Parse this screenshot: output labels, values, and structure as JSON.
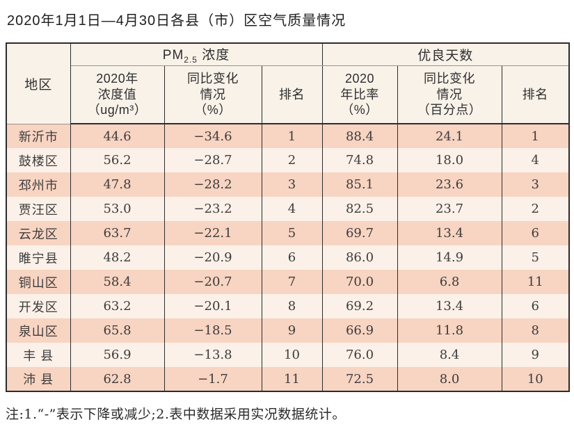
{
  "page": {
    "title": "2020年1月1日—4月30日各县（市）区空气质量情况",
    "note": "注:1.“-”表示下降或减少;2.表中数据采用实况数据统计。"
  },
  "colors": {
    "row_pink": "#f8d4c2",
    "row_light": "#fbf1e9",
    "header_bg": "#f8f2e9",
    "border_dark": "#2b2b2b"
  },
  "table": {
    "headers": {
      "region": "地区",
      "pm_group": {
        "base": "PM",
        "sub": "2.5",
        "rest": " 浓度"
      },
      "good_group": "优良天数",
      "pm_value": {
        "lines": [
          "2020年",
          "浓度值",
          "（ug/m³）"
        ]
      },
      "pm_change": {
        "lines": [
          "同比变化",
          "情况",
          "（%）"
        ]
      },
      "pm_rank": "排名",
      "good_rate": {
        "lines": [
          "2020",
          "年比率",
          "（%）"
        ]
      },
      "good_change": {
        "lines": [
          "同比变化",
          "情况",
          "（百分点）"
        ]
      },
      "good_rank": "排名"
    },
    "rows": [
      {
        "region": "新沂市",
        "pm_value": "44.6",
        "pm_change": "−34.6",
        "pm_rank": "1",
        "good_rate": "88.4",
        "good_change": "24.1",
        "good_rank": "1"
      },
      {
        "region": "鼓楼区",
        "pm_value": "56.2",
        "pm_change": "−28.7",
        "pm_rank": "2",
        "good_rate": "74.8",
        "good_change": "18.0",
        "good_rank": "4"
      },
      {
        "region": "邳州市",
        "pm_value": "47.8",
        "pm_change": "−28.2",
        "pm_rank": "3",
        "good_rate": "85.1",
        "good_change": "23.6",
        "good_rank": "3"
      },
      {
        "region": "贾汪区",
        "pm_value": "53.0",
        "pm_change": "−23.2",
        "pm_rank": "4",
        "good_rate": "82.5",
        "good_change": "23.7",
        "good_rank": "2"
      },
      {
        "region": "云龙区",
        "pm_value": "63.7",
        "pm_change": "−22.1",
        "pm_rank": "5",
        "good_rate": "69.7",
        "good_change": "13.4",
        "good_rank": "6"
      },
      {
        "region": "睢宁县",
        "pm_value": "48.2",
        "pm_change": "−20.9",
        "pm_rank": "6",
        "good_rate": "86.0",
        "good_change": "14.9",
        "good_rank": "5"
      },
      {
        "region": "铜山区",
        "pm_value": "58.4",
        "pm_change": "−20.7",
        "pm_rank": "7",
        "good_rate": "70.0",
        "good_change": "6.8",
        "good_rank": "11"
      },
      {
        "region": "开发区",
        "pm_value": "63.2",
        "pm_change": "−20.1",
        "pm_rank": "8",
        "good_rate": "69.2",
        "good_change": "13.4",
        "good_rank": "6"
      },
      {
        "region": "泉山区",
        "pm_value": "65.8",
        "pm_change": "−18.5",
        "pm_rank": "9",
        "good_rate": "66.9",
        "good_change": "11.8",
        "good_rank": "8"
      },
      {
        "region": "丰 县",
        "pm_value": "56.9",
        "pm_change": "−13.8",
        "pm_rank": "10",
        "good_rate": "76.0",
        "good_change": "8.4",
        "good_rank": "9"
      },
      {
        "region": "沛 县",
        "pm_value": "62.8",
        "pm_change": "−1.7",
        "pm_rank": "11",
        "good_rate": "72.5",
        "good_change": "8.0",
        "good_rank": "10"
      }
    ]
  }
}
